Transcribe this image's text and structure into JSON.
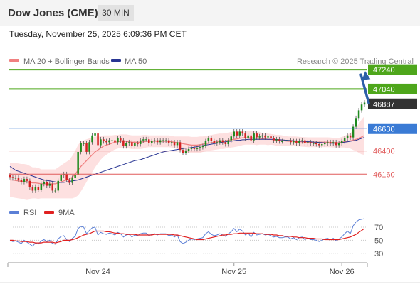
{
  "header": {
    "title": "Dow Jones (CME)",
    "timeframe": "30 MIN"
  },
  "timestamp": "Tuesday, November 25, 2025 6:09:36 PM CET",
  "watermark": "Research © 2025 Trading Central",
  "colors": {
    "support": "#e05a5a",
    "resistance": "#4ea61b",
    "pivot": "#3a7bd5",
    "bull": "#1e8a1e",
    "bear": "#d42020",
    "band_fill": "#fde0e0",
    "ma20": "#f08080",
    "ma50": "#283593",
    "rsi": "#5b7fd6",
    "rsi_ma": "#e02020",
    "arrow": "#2d5fa8",
    "last_price_bg": "#333333"
  },
  "chart_data": [
    {
      "type": "candlestick",
      "legend": [
        {
          "name": "MA 20 + Bollinger Bands",
          "color": "#f08080"
        },
        {
          "name": "MA 50",
          "color": "#283593"
        }
      ],
      "ylim": [
        45920,
        47300
      ],
      "x_ticks": [
        {
          "label": "Nov 24",
          "index": 31
        },
        {
          "label": "Nov 25",
          "index": 79
        },
        {
          "label": "Nov 26",
          "index": 117
        }
      ],
      "last_price": 46887,
      "levels": [
        {
          "value": 47240,
          "label": "47240",
          "kind": "resistance"
        },
        {
          "value": 47040,
          "label": "47040",
          "kind": "resistance"
        },
        {
          "value": 46630,
          "label": "46630",
          "kind": "pivot"
        },
        {
          "value": 46400,
          "label": "46400",
          "kind": "support"
        },
        {
          "value": 46160,
          "label": "46160",
          "kind": "support"
        }
      ],
      "target_arrow": {
        "from_value": 46880,
        "to_value": 47240
      },
      "closes": [
        46130,
        46118,
        46122,
        46100,
        46080,
        46110,
        46090,
        46025,
        45990,
        46030,
        46000,
        46060,
        46080,
        46040,
        46060,
        45990,
        45990,
        46090,
        46150,
        46160,
        46100,
        46070,
        46120,
        46150,
        46390,
        46480,
        46480,
        46390,
        46490,
        46560,
        46580,
        46460,
        46520,
        46500,
        46490,
        46510,
        46510,
        46490,
        46530,
        46510,
        46450,
        46480,
        46490,
        46450,
        46480,
        46470,
        46510,
        46520,
        46520,
        46480,
        46500,
        46510,
        46490,
        46510,
        46510,
        46510,
        46480,
        46490,
        46460,
        46490,
        46410,
        46380,
        46400,
        46420,
        46430,
        46420,
        46430,
        46440,
        46450,
        46500,
        46530,
        46500,
        46480,
        46490,
        46510,
        46490,
        46470,
        46510,
        46550,
        46600,
        46560,
        46600,
        46580,
        46530,
        46560,
        46510,
        46580,
        46540,
        46550,
        46560,
        46540,
        46550,
        46530,
        46510,
        46520,
        46500,
        46500,
        46510,
        46510,
        46490,
        46500,
        46480,
        46500,
        46510,
        46480,
        46490,
        46480,
        46480,
        46470,
        46460,
        46470,
        46480,
        46490,
        46480,
        46490,
        46460,
        46480,
        46500,
        46530,
        46560,
        46540,
        46650,
        46740,
        46820,
        46880,
        46900
      ],
      "ma20": [
        46100,
        46100,
        46095,
        46090,
        46085,
        46085,
        46080,
        46075,
        46070,
        46070,
        46065,
        46060,
        46060,
        46060,
        46060,
        46060,
        46060,
        46070,
        46080,
        46090,
        46100,
        46110,
        46130,
        46160,
        46200,
        46240,
        46270,
        46300,
        46330,
        46360,
        46390,
        46410,
        46430,
        46450,
        46460,
        46470,
        46480,
        46490,
        46495,
        46500,
        46500,
        46500,
        46495,
        46490,
        46490,
        46490,
        46490,
        46495,
        46500,
        46500,
        46500,
        46500,
        46500,
        46500,
        46500,
        46500,
        46500,
        46495,
        46490,
        46485,
        46480,
        46475,
        46470,
        46465,
        46460,
        46460,
        46460,
        46465,
        46470,
        46475,
        46480,
        46485,
        46490,
        46495,
        46500,
        46500,
        46505,
        46510,
        46515,
        46520,
        46525,
        46530,
        46535,
        46535,
        46535,
        46535,
        46535,
        46530,
        46530,
        46525,
        46525,
        46520,
        46520,
        46515,
        46510,
        46510,
        46505,
        46505,
        46500,
        46500,
        46500,
        46498,
        46496,
        46494,
        46492,
        46490,
        46490,
        46490,
        46490,
        46490,
        46490,
        46490,
        46490,
        46488,
        46486,
        46485,
        46485,
        46490,
        46495,
        46500,
        46505,
        46510,
        46520,
        46530,
        46545,
        46560
      ],
      "bb_width": [
        180,
        180,
        180,
        180,
        180,
        180,
        180,
        170,
        160,
        160,
        160,
        150,
        150,
        150,
        150,
        150,
        150,
        160,
        170,
        180,
        190,
        200,
        220,
        240,
        260,
        260,
        240,
        220,
        200,
        180,
        160,
        140,
        120,
        110,
        100,
        90,
        80,
        75,
        70,
        70,
        70,
        70,
        70,
        70,
        70,
        70,
        70,
        70,
        65,
        60,
        60,
        60,
        60,
        60,
        60,
        60,
        60,
        60,
        60,
        65,
        70,
        75,
        80,
        85,
        85,
        85,
        85,
        85,
        80,
        80,
        80,
        80,
        80,
        80,
        80,
        80,
        80,
        80,
        80,
        80,
        80,
        80,
        75,
        70,
        70,
        70,
        70,
        70,
        65,
        60,
        60,
        60,
        55,
        55,
        55,
        55,
        55,
        50,
        50,
        50,
        50,
        50,
        50,
        50,
        50,
        50,
        50,
        50,
        50,
        50,
        50,
        50,
        50,
        50,
        50,
        50,
        50,
        55,
        60,
        70,
        80,
        100,
        120,
        150,
        180,
        200
      ],
      "ma50": [
        46240,
        46220,
        46200,
        46190,
        46180,
        46170,
        46160,
        46150,
        46140,
        46130,
        46120,
        46110,
        46100,
        46095,
        46090,
        46085,
        46080,
        46075,
        46075,
        46075,
        46080,
        46085,
        46090,
        46095,
        46100,
        46110,
        46120,
        46130,
        46140,
        46150,
        46160,
        46170,
        46180,
        46190,
        46200,
        46210,
        46220,
        46230,
        46240,
        46250,
        46260,
        46270,
        46280,
        46290,
        46300,
        46305,
        46310,
        46320,
        46330,
        46340,
        46350,
        46360,
        46370,
        46380,
        46390,
        46395,
        46400,
        46405,
        46410,
        46415,
        46420,
        46425,
        46430,
        46430,
        46435,
        46440,
        46445,
        46450,
        46455,
        46460,
        46465,
        46470,
        46475,
        46480,
        46485,
        46490,
        46495,
        46500,
        46500,
        46505,
        46510,
        46510,
        46515,
        46515,
        46520,
        46520,
        46520,
        46520,
        46520,
        46520,
        46520,
        46520,
        46520,
        46520,
        46518,
        46516,
        46514,
        46512,
        46510,
        46508,
        46506,
        46504,
        46502,
        46500,
        46498,
        46496,
        46494,
        46492,
        46490,
        46488,
        46486,
        46484,
        46482,
        46480,
        46480,
        46480,
        46480,
        46485,
        46490,
        46495,
        46500,
        46505,
        46510,
        46520,
        46530,
        46540
      ]
    },
    {
      "type": "line",
      "legend": [
        {
          "name": "RSI",
          "color": "#5b7fd6"
        },
        {
          "name": "9MA",
          "color": "#e02020"
        }
      ],
      "ylim": [
        20,
        83
      ],
      "y_ticks": [
        "70",
        "50",
        "30"
      ],
      "guides": [
        70,
        50,
        30
      ],
      "rsi": [
        50,
        48,
        49,
        47,
        45,
        50,
        47,
        44,
        41,
        46,
        44,
        49,
        51,
        48,
        50,
        45,
        44,
        52,
        56,
        57,
        51,
        48,
        53,
        56,
        68,
        71,
        70,
        60,
        65,
        69,
        70,
        58,
        62,
        60,
        59,
        61,
        60,
        58,
        62,
        60,
        55,
        58,
        59,
        55,
        58,
        57,
        60,
        61,
        61,
        57,
        59,
        60,
        58,
        60,
        60,
        60,
        57,
        58,
        55,
        58,
        48,
        45,
        47,
        50,
        52,
        51,
        52,
        53,
        54,
        60,
        63,
        59,
        57,
        58,
        60,
        58,
        56,
        60,
        63,
        68,
        63,
        67,
        64,
        58,
        61,
        55,
        62,
        58,
        59,
        60,
        58,
        59,
        57,
        55,
        56,
        54,
        54,
        55,
        55,
        52,
        54,
        51,
        54,
        55,
        51,
        53,
        51,
        51,
        50,
        48,
        50,
        52,
        53,
        51,
        53,
        49,
        52,
        55,
        60,
        64,
        60,
        72,
        78,
        81,
        82,
        83
      ],
      "rsi_ma": [
        50,
        50,
        49,
        49,
        48,
        48,
        48,
        47,
        47,
        46,
        46,
        46,
        47,
        47,
        47,
        47,
        46,
        47,
        48,
        50,
        50,
        50,
        51,
        52,
        54,
        56,
        58,
        59,
        60,
        62,
        64,
        64,
        64,
        64,
        63,
        63,
        62,
        61,
        61,
        60,
        60,
        59,
        59,
        59,
        59,
        58,
        58,
        58,
        58,
        58,
        58,
        59,
        59,
        59,
        59,
        59,
        59,
        59,
        58,
        58,
        57,
        56,
        55,
        54,
        53,
        52,
        51,
        51,
        51,
        52,
        53,
        54,
        55,
        56,
        57,
        58,
        58,
        59,
        59,
        60,
        60,
        61,
        61,
        61,
        61,
        61,
        61,
        60,
        60,
        60,
        59,
        59,
        59,
        58,
        58,
        57,
        57,
        56,
        56,
        56,
        55,
        55,
        54,
        54,
        54,
        53,
        53,
        53,
        52,
        52,
        52,
        51,
        51,
        51,
        51,
        51,
        51,
        52,
        53,
        54,
        55,
        57,
        59,
        62,
        65,
        68
      ]
    }
  ]
}
